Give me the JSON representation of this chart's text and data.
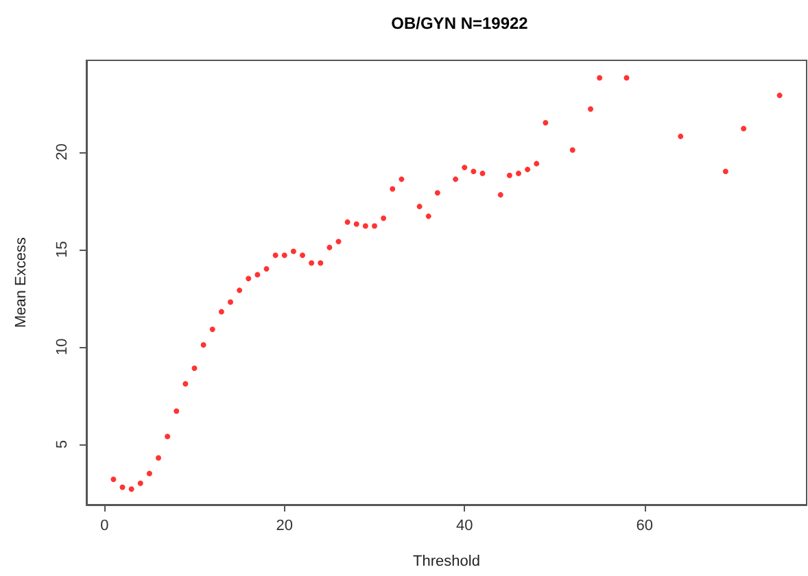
{
  "chart_data": {
    "type": "scatter",
    "title": "OB/GYN N=19922",
    "xlabel": "Threshold",
    "ylabel": "Mean Excess",
    "x": [
      1,
      2,
      3,
      4,
      5,
      6,
      7,
      8,
      9,
      10,
      11,
      12,
      13,
      14,
      15,
      16,
      17,
      18,
      19,
      20,
      21,
      22,
      23,
      24,
      25,
      26,
      27,
      28,
      29,
      30,
      31,
      32,
      33,
      35,
      36,
      37,
      39,
      40,
      41,
      42,
      44,
      45,
      46,
      47,
      48,
      49,
      52,
      54,
      55,
      58,
      64,
      69,
      71,
      75
    ],
    "series": [
      {
        "color": "#ff0000",
        "values": [
          3.2,
          2.8,
          2.7,
          3.0,
          3.5,
          4.3,
          5.4,
          6.7,
          8.1,
          8.9,
          10.1,
          10.9,
          11.8,
          12.3,
          12.9,
          13.5,
          13.7,
          14.0,
          14.7,
          14.7,
          14.9,
          14.7,
          14.3,
          14.3,
          15.1,
          15.4,
          16.4,
          16.3,
          16.2,
          16.2,
          16.6,
          18.1,
          18.6,
          17.2,
          16.7,
          17.9,
          18.6,
          19.2,
          19.0,
          18.9,
          17.8,
          18.8,
          18.9,
          19.1,
          19.4,
          21.5,
          20.1,
          22.2,
          23.8,
          23.8,
          20.8,
          19.0,
          21.2,
          22.9
        ]
      }
    ],
    "xlim": [
      -2,
      78
    ],
    "xticks": [
      0,
      20,
      40,
      60
    ],
    "ylim": [
      1.9,
      24.7
    ],
    "yticks": [
      5,
      10,
      15,
      20
    ],
    "grid": false,
    "marker": "circle"
  }
}
